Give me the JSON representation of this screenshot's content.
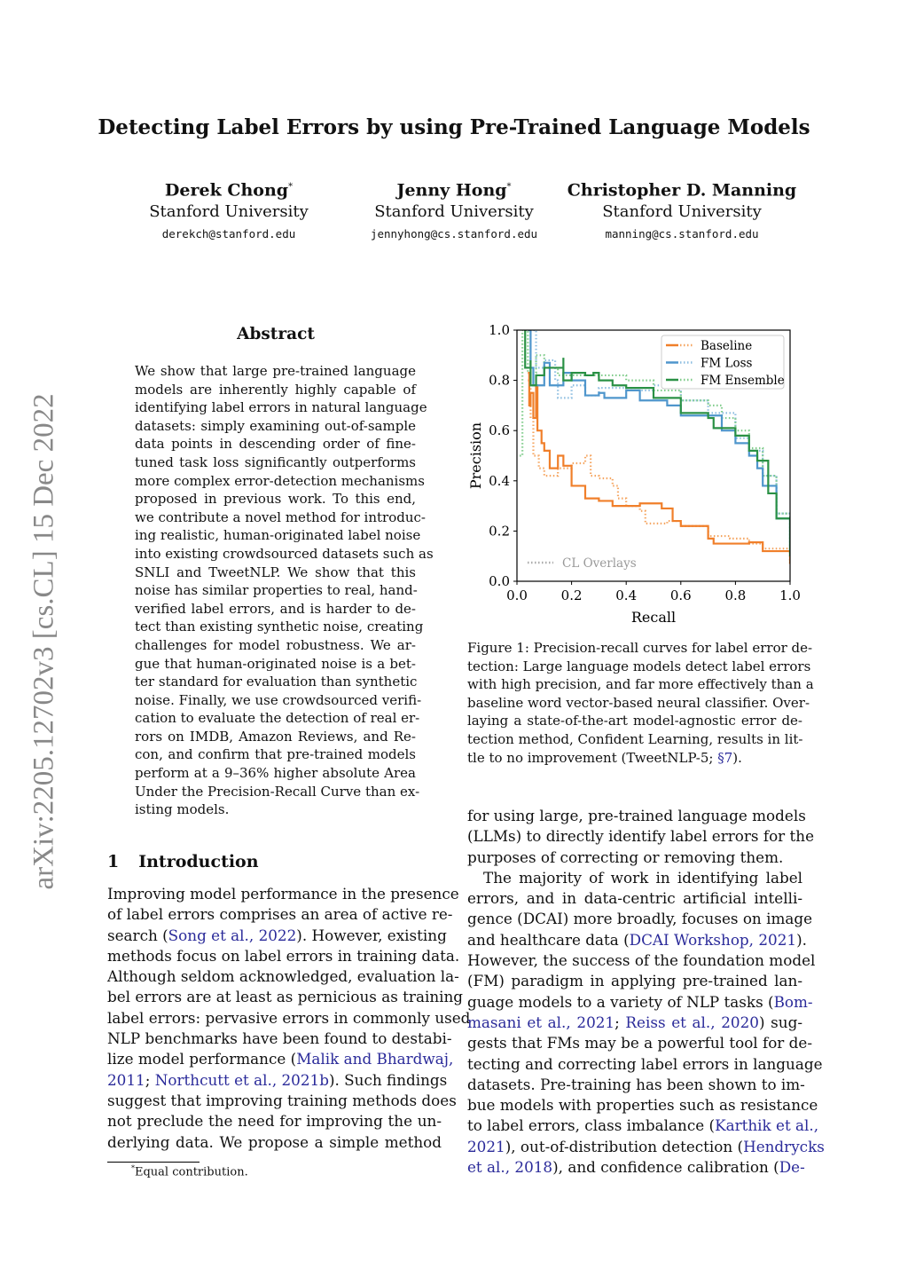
{
  "title": "Detecting Label Errors by using Pre-Trained Language Models",
  "authors": [
    {
      "name": "Derek Chong",
      "mark": "*",
      "affiliation": "Stanford University",
      "email": "derekch@stanford.edu"
    },
    {
      "name": "Jenny Hong",
      "mark": "*",
      "affiliation": "Stanford University",
      "email": "jennyhong@cs.stanford.edu"
    },
    {
      "name": "Christopher D. Manning",
      "mark": "",
      "affiliation": "Stanford University",
      "email": "manning@cs.stanford.edu"
    }
  ],
  "arxiv_id": "arXiv:2205.12702v3  [cs.CL]  15 Dec 2022",
  "abstract_heading": "Abstract",
  "abstract_lines": [
    "We show that large pre-trained language",
    "models are inherently highly capable of",
    "identifying label errors in natural language",
    "datasets: simply examining out-of-sample",
    "data points in descending order of fine-",
    "tuned task loss significantly outperforms",
    "more complex error-detection mechanisms",
    "proposed in previous work.  To this end,",
    "we contribute a novel method for introduc-",
    "ing realistic, human-originated label noise",
    "into existing crowdsourced datasets such as",
    "SNLI and TweetNLP. We show that this",
    "noise has similar properties to real, hand-",
    "verified label errors, and is harder to de-",
    "tect than existing synthetic noise, creating",
    "challenges for model robustness.  We ar-",
    "gue that human-originated noise is a bet-",
    "ter standard for evaluation than synthetic",
    "noise. Finally, we use crowdsourced verifi-",
    "cation to evaluate the detection of real er-",
    "rors on IMDB, Amazon Reviews, and Re-",
    "con, and confirm that pre-trained models",
    "perform at a 9–36% higher absolute Area",
    "Under the Precision-Recall Curve than ex-",
    "isting models."
  ],
  "section": {
    "number": "1",
    "title": "Introduction"
  },
  "intro_lines": [
    [
      "Improving model performance in the presence"
    ],
    [
      "of label errors comprises an area of active re-"
    ],
    [
      "search (",
      {
        "l": "Song et al.,"
      },
      " ",
      {
        "l": "2022"
      },
      "). However, existing"
    ],
    [
      "methods focus on label errors in training data."
    ],
    [
      "Although seldom acknowledged, evaluation la-"
    ],
    [
      "bel errors are at least as pernicious as training"
    ],
    [
      "label errors: pervasive errors in commonly used"
    ],
    [
      "NLP benchmarks have been found to destabi-"
    ],
    [
      "lize model performance (",
      {
        "l": "Malik and Bhardwaj,"
      }
    ],
    [
      {
        "l": "2011"
      },
      "; ",
      {
        "l": "Northcutt et al.,"
      },
      " ",
      {
        "l": "2021b"
      },
      "). Such findings"
    ],
    [
      "suggest that improving training methods does"
    ],
    [
      "not preclude the need for improving the un-"
    ],
    [
      "derlying data.  We propose a simple method"
    ]
  ],
  "right_lines": [
    [
      "for using large, pre-trained language models"
    ],
    [
      "(LLMs) to directly identify label errors for the"
    ],
    [
      "purposes of correcting or removing them.",
      {
        "last": true
      }
    ],
    [
      "The majority of work in identifying label",
      {
        "indent": true
      }
    ],
    [
      "errors, and in data-centric artificial intelli-"
    ],
    [
      "gence (DCAI) more broadly, focuses on image"
    ],
    [
      "and healthcare data (",
      {
        "l": "DCAI Workshop,"
      },
      " ",
      {
        "l": "2021"
      },
      ")."
    ],
    [
      "However, the success of the foundation model"
    ],
    [
      "(FM) paradigm in applying pre-trained lan-"
    ],
    [
      "guage models to a variety of NLP tasks (",
      {
        "l": "Bom-"
      }
    ],
    [
      {
        "l": "masani et al.,"
      },
      " ",
      {
        "l": "2021"
      },
      "; ",
      {
        "l": "Reiss et al.,"
      },
      " ",
      {
        "l": "2020"
      },
      ") sug-"
    ],
    [
      "gests that FMs may be a powerful tool for de-"
    ],
    [
      "tecting and correcting label errors in language"
    ],
    [
      "datasets. Pre-training has been shown to im-"
    ],
    [
      "bue models with properties such as resistance"
    ],
    [
      "to label errors, class imbalance (",
      {
        "l": "Karthik et al.,"
      }
    ],
    [
      {
        "l": "2021"
      },
      "), out-of-distribution detection (",
      {
        "l": "Hendrycks"
      }
    ],
    [
      {
        "l": "et al.,"
      },
      " ",
      {
        "l": "2018"
      },
      "), and confidence calibration (",
      {
        "l": "De-"
      }
    ]
  ],
  "caption_lines": [
    [
      "Figure 1: Precision-recall curves for label error de-"
    ],
    [
      "tection: Large language models detect label errors"
    ],
    [
      "with high precision, and far more effectively than a"
    ],
    [
      "baseline word vector-based neural classifier.  Over-"
    ],
    [
      "laying a state-of-the-art model-agnostic error de-"
    ],
    [
      "tection method, Confident Learning, results in lit-"
    ],
    [
      "tle to no improvement (TweetNLP-5; ",
      {
        "l": "§7"
      },
      ").",
      {
        "last": true
      }
    ]
  ],
  "footnote": {
    "mark": "*",
    "text": "Equal contribution."
  },
  "colors": {
    "link": "#2b2b9a",
    "baseline": "#f07f2a",
    "fm_loss": "#4f96cc",
    "fm_ensemble": "#2a9145"
  },
  "chart_data": {
    "type": "line",
    "xlabel": "Recall",
    "ylabel": "Precision",
    "xlim": [
      0,
      1
    ],
    "ylim": [
      0,
      1
    ],
    "xticks": [
      "0.0",
      "0.2",
      "0.4",
      "0.6",
      "0.8",
      "1.0"
    ],
    "yticks": [
      "0.0",
      "0.2",
      "0.4",
      "0.6",
      "0.8",
      "1.0"
    ],
    "grid": false,
    "legend_position": "top-right",
    "legend2": {
      "label": "CL Overlays",
      "position": "bottom-left"
    },
    "series": [
      {
        "name": "Baseline",
        "color": "#f07f2a",
        "style": "solid",
        "points": [
          [
            0.04,
            0.83
          ],
          [
            0.045,
            0.7
          ],
          [
            0.05,
            0.75
          ],
          [
            0.06,
            0.65
          ],
          [
            0.07,
            0.78
          ],
          [
            0.075,
            0.6
          ],
          [
            0.09,
            0.55
          ],
          [
            0.1,
            0.52
          ],
          [
            0.12,
            0.45
          ],
          [
            0.15,
            0.5
          ],
          [
            0.17,
            0.46
          ],
          [
            0.2,
            0.38
          ],
          [
            0.25,
            0.33
          ],
          [
            0.3,
            0.32
          ],
          [
            0.35,
            0.3
          ],
          [
            0.4,
            0.3
          ],
          [
            0.45,
            0.31
          ],
          [
            0.5,
            0.31
          ],
          [
            0.53,
            0.29
          ],
          [
            0.57,
            0.24
          ],
          [
            0.6,
            0.22
          ],
          [
            0.7,
            0.17
          ],
          [
            0.72,
            0.15
          ],
          [
            0.8,
            0.15
          ],
          [
            0.85,
            0.155
          ],
          [
            0.9,
            0.12
          ],
          [
            1.0,
            0.07
          ]
        ]
      },
      {
        "name": "Baseline (CL Overlay)",
        "color": "#f5a560",
        "style": "dotted",
        "points": [
          [
            0.04,
            0.8
          ],
          [
            0.05,
            0.65
          ],
          [
            0.06,
            0.5
          ],
          [
            0.08,
            0.45
          ],
          [
            0.1,
            0.42
          ],
          [
            0.15,
            0.45
          ],
          [
            0.2,
            0.47
          ],
          [
            0.25,
            0.5
          ],
          [
            0.27,
            0.42
          ],
          [
            0.3,
            0.41
          ],
          [
            0.35,
            0.38
          ],
          [
            0.37,
            0.33
          ],
          [
            0.4,
            0.3
          ],
          [
            0.45,
            0.28
          ],
          [
            0.47,
            0.23
          ],
          [
            0.5,
            0.23
          ],
          [
            0.55,
            0.24
          ],
          [
            0.6,
            0.22
          ],
          [
            0.7,
            0.18
          ],
          [
            0.78,
            0.17
          ],
          [
            0.85,
            0.15
          ],
          [
            0.9,
            0.13
          ],
          [
            1.0,
            0.06
          ]
        ]
      },
      {
        "name": "FM Loss",
        "color": "#4f96cc",
        "style": "solid",
        "points": [
          [
            0.04,
            1.0
          ],
          [
            0.05,
            0.85
          ],
          [
            0.06,
            0.78
          ],
          [
            0.1,
            0.87
          ],
          [
            0.12,
            0.78
          ],
          [
            0.17,
            0.83
          ],
          [
            0.2,
            0.8
          ],
          [
            0.25,
            0.74
          ],
          [
            0.3,
            0.75
          ],
          [
            0.32,
            0.73
          ],
          [
            0.4,
            0.76
          ],
          [
            0.45,
            0.72
          ],
          [
            0.5,
            0.72
          ],
          [
            0.55,
            0.7
          ],
          [
            0.6,
            0.66
          ],
          [
            0.7,
            0.66
          ],
          [
            0.75,
            0.6
          ],
          [
            0.8,
            0.55
          ],
          [
            0.85,
            0.5
          ],
          [
            0.88,
            0.45
          ],
          [
            0.9,
            0.38
          ],
          [
            0.95,
            0.25
          ],
          [
            1.0,
            0.12
          ]
        ]
      },
      {
        "name": "FM Loss (CL Overlay)",
        "color": "#8cbde0",
        "style": "dotted",
        "points": [
          [
            0.06,
            1.0
          ],
          [
            0.07,
            0.85
          ],
          [
            0.1,
            0.88
          ],
          [
            0.14,
            0.8
          ],
          [
            0.15,
            0.73
          ],
          [
            0.2,
            0.78
          ],
          [
            0.25,
            0.74
          ],
          [
            0.3,
            0.77
          ],
          [
            0.4,
            0.76
          ],
          [
            0.5,
            0.78
          ],
          [
            0.6,
            0.72
          ],
          [
            0.7,
            0.67
          ],
          [
            0.8,
            0.57
          ],
          [
            0.85,
            0.52
          ],
          [
            0.9,
            0.42
          ],
          [
            0.95,
            0.27
          ],
          [
            1.0,
            0.11
          ]
        ]
      },
      {
        "name": "FM Ensemble",
        "color": "#2a9145",
        "style": "solid",
        "points": [
          [
            0.03,
            1.0
          ],
          [
            0.03,
            0.85
          ],
          [
            0.05,
            0.88
          ],
          [
            0.05,
            0.78
          ],
          [
            0.07,
            0.82
          ],
          [
            0.1,
            0.85
          ],
          [
            0.17,
            0.89
          ],
          [
            0.17,
            0.8
          ],
          [
            0.2,
            0.83
          ],
          [
            0.25,
            0.82
          ],
          [
            0.28,
            0.83
          ],
          [
            0.3,
            0.8
          ],
          [
            0.35,
            0.78
          ],
          [
            0.4,
            0.77
          ],
          [
            0.46,
            0.77
          ],
          [
            0.5,
            0.73
          ],
          [
            0.6,
            0.67
          ],
          [
            0.7,
            0.65
          ],
          [
            0.72,
            0.61
          ],
          [
            0.8,
            0.58
          ],
          [
            0.85,
            0.52
          ],
          [
            0.88,
            0.48
          ],
          [
            0.92,
            0.35
          ],
          [
            0.95,
            0.25
          ],
          [
            1.0,
            0.1
          ]
        ]
      },
      {
        "name": "FM Ensemble (CL Overlay)",
        "color": "#7fcc8a",
        "style": "dotted",
        "points": [
          [
            0.01,
            0.5
          ],
          [
            0.02,
            1.0
          ],
          [
            0.04,
            0.83
          ],
          [
            0.07,
            0.9
          ],
          [
            0.1,
            0.85
          ],
          [
            0.15,
            0.82
          ],
          [
            0.3,
            0.82
          ],
          [
            0.4,
            0.8
          ],
          [
            0.5,
            0.76
          ],
          [
            0.6,
            0.72
          ],
          [
            0.7,
            0.7
          ],
          [
            0.75,
            0.65
          ],
          [
            0.8,
            0.6
          ],
          [
            0.85,
            0.53
          ],
          [
            0.9,
            0.42
          ],
          [
            0.95,
            0.27
          ],
          [
            1.0,
            0.08
          ]
        ]
      }
    ]
  }
}
